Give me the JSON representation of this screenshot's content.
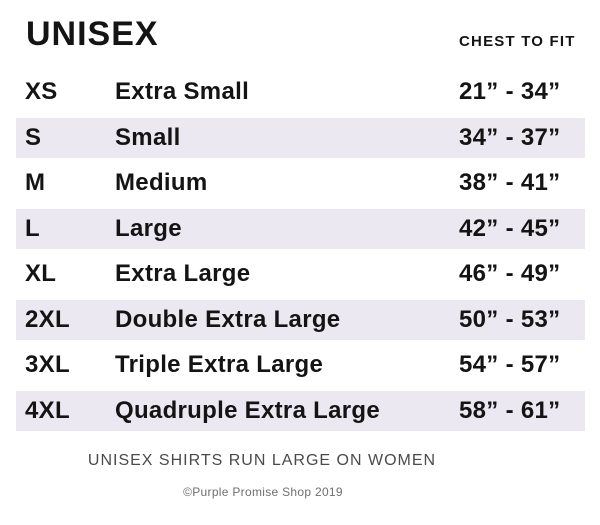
{
  "chart_data": {
    "type": "table",
    "title": "UNISEX",
    "column_header": "CHEST TO FIT",
    "columns": [
      "size_code",
      "size_name",
      "chest_to_fit"
    ],
    "rows": [
      {
        "code": "XS",
        "name": "Extra Small",
        "chest": "21” - 34”"
      },
      {
        "code": "S",
        "name": "Small",
        "chest": "34” - 37”"
      },
      {
        "code": "M",
        "name": "Medium",
        "chest": "38” - 41”"
      },
      {
        "code": "L",
        "name": "Large",
        "chest": "42” - 45”"
      },
      {
        "code": "XL",
        "name": "Extra Large",
        "chest": "46” - 49”"
      },
      {
        "code": "2XL",
        "name": "Double Extra Large",
        "chest": "50” - 53”"
      },
      {
        "code": "3XL",
        "name": "Triple Extra Large",
        "chest": "54” - 57”"
      },
      {
        "code": "4XL",
        "name": "Quadruple Extra Large",
        "chest": "58” - 61”"
      }
    ],
    "layout": {
      "striped_rows": "alternating starting with second row",
      "legend": "none",
      "grid": "off"
    }
  },
  "footer": {
    "note": "UNISEX SHIRTS RUN LARGE ON WOMEN",
    "copyright": "©Purple Promise Shop 2019"
  },
  "colors": {
    "background": "#ffffff",
    "row_alt_background": "#ece8f2",
    "text": "#141414",
    "note_text": "#4a4a4a",
    "copyright_text": "#6f6f6f"
  }
}
